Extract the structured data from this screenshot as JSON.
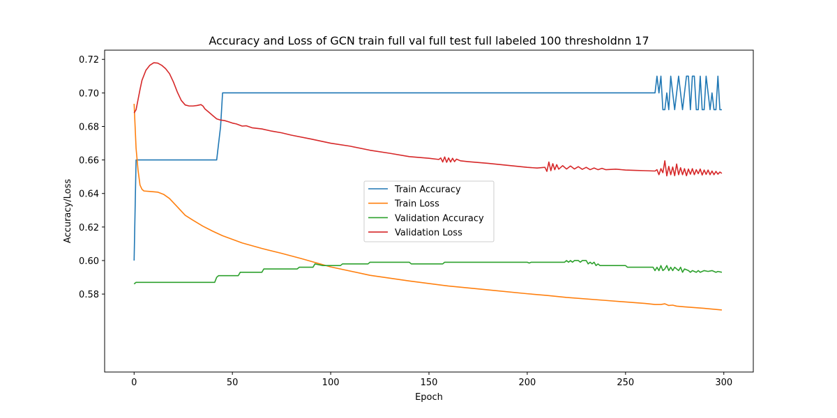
{
  "chart_data": {
    "type": "line",
    "title": "Accuracy and Loss of GCN train full val full test full labeled 100 thresholdnn 17",
    "xlabel": "Epoch",
    "ylabel": "Accuracy/Loss",
    "xlim": [
      -15,
      315
    ],
    "ylim": [
      0.5335,
      0.7255
    ],
    "xticks": [
      0,
      50,
      100,
      150,
      200,
      250,
      300
    ],
    "yticks": [
      0.58,
      0.6,
      0.62,
      0.64,
      0.66,
      0.68,
      0.7,
      0.72
    ],
    "ytick_labels": [
      "0.58",
      "0.60",
      "0.62",
      "0.64",
      "0.66",
      "0.68",
      "0.70",
      "0.72"
    ],
    "grid": false,
    "legend_position": "center",
    "series": [
      {
        "name": "Train Accuracy",
        "color": "#1f77b4",
        "points": [
          [
            0,
            0.6
          ],
          [
            1,
            0.66
          ],
          [
            42,
            0.66
          ],
          [
            44,
            0.68
          ],
          [
            45,
            0.7
          ],
          [
            265,
            0.7
          ],
          [
            266,
            0.71
          ],
          [
            267,
            0.7
          ],
          [
            268,
            0.71
          ],
          [
            269,
            0.69
          ],
          [
            270,
            0.69
          ],
          [
            271,
            0.7
          ],
          [
            272,
            0.69
          ],
          [
            273,
            0.71
          ],
          [
            274,
            0.7
          ],
          [
            275,
            0.69
          ],
          [
            276,
            0.7
          ],
          [
            277,
            0.71
          ],
          [
            278,
            0.7
          ],
          [
            279,
            0.69
          ],
          [
            280,
            0.7
          ],
          [
            281,
            0.71
          ],
          [
            282,
            0.71
          ],
          [
            283,
            0.69
          ],
          [
            284,
            0.71
          ],
          [
            285,
            0.71
          ],
          [
            286,
            0.69
          ],
          [
            287,
            0.69
          ],
          [
            288,
            0.71
          ],
          [
            289,
            0.69
          ],
          [
            290,
            0.69
          ],
          [
            291,
            0.71
          ],
          [
            292,
            0.7
          ],
          [
            293,
            0.69
          ],
          [
            294,
            0.7
          ],
          [
            295,
            0.69
          ],
          [
            296,
            0.69
          ],
          [
            297,
            0.71
          ],
          [
            298,
            0.69
          ],
          [
            299,
            0.69
          ]
        ]
      },
      {
        "name": "Train Loss",
        "color": "#ff7f0e",
        "points": [
          [
            0,
            0.6935
          ],
          [
            1,
            0.667
          ],
          [
            2,
            0.654
          ],
          [
            3,
            0.645
          ],
          [
            4,
            0.6425
          ],
          [
            5,
            0.6415
          ],
          [
            8,
            0.6412
          ],
          [
            12,
            0.6408
          ],
          [
            15,
            0.6395
          ],
          [
            18,
            0.637
          ],
          [
            22,
            0.632
          ],
          [
            26,
            0.627
          ],
          [
            30,
            0.624
          ],
          [
            35,
            0.6205
          ],
          [
            40,
            0.6175
          ],
          [
            45,
            0.6148
          ],
          [
            55,
            0.6105
          ],
          [
            65,
            0.6072
          ],
          [
            75,
            0.6043
          ],
          [
            85,
            0.6012
          ],
          [
            100,
            0.5962
          ],
          [
            120,
            0.5912
          ],
          [
            140,
            0.5878
          ],
          [
            160,
            0.5848
          ],
          [
            180,
            0.5825
          ],
          [
            200,
            0.5802
          ],
          [
            210,
            0.5792
          ],
          [
            220,
            0.578
          ],
          [
            240,
            0.5762
          ],
          [
            260,
            0.5744
          ],
          [
            265,
            0.5738
          ],
          [
            268,
            0.5738
          ],
          [
            270,
            0.5742
          ],
          [
            272,
            0.5732
          ],
          [
            274,
            0.5734
          ],
          [
            276,
            0.5728
          ],
          [
            280,
            0.5724
          ],
          [
            290,
            0.5715
          ],
          [
            299,
            0.5705
          ]
        ]
      },
      {
        "name": "Validation Accuracy",
        "color": "#2ca02c",
        "points": [
          [
            0,
            0.586
          ],
          [
            1,
            0.587
          ],
          [
            41,
            0.587
          ],
          [
            42,
            0.59
          ],
          [
            43,
            0.591
          ],
          [
            53,
            0.591
          ],
          [
            54,
            0.593
          ],
          [
            65,
            0.593
          ],
          [
            66,
            0.595
          ],
          [
            83,
            0.595
          ],
          [
            84,
            0.596
          ],
          [
            91,
            0.596
          ],
          [
            92,
            0.598
          ],
          [
            96,
            0.597
          ],
          [
            105,
            0.597
          ],
          [
            106,
            0.598
          ],
          [
            119,
            0.598
          ],
          [
            120,
            0.599
          ],
          [
            140,
            0.599
          ],
          [
            141,
            0.598
          ],
          [
            157,
            0.598
          ],
          [
            158,
            0.599
          ],
          [
            200,
            0.599
          ],
          [
            201,
            0.5985
          ],
          [
            202,
            0.599
          ],
          [
            219,
            0.599
          ],
          [
            220,
            0.6
          ],
          [
            221,
            0.599
          ],
          [
            222,
            0.6
          ],
          [
            223,
            0.599
          ],
          [
            224,
            0.6
          ],
          [
            226,
            0.6
          ],
          [
            227,
            0.599
          ],
          [
            228,
            0.6
          ],
          [
            230,
            0.6
          ],
          [
            231,
            0.598
          ],
          [
            232,
            0.599
          ],
          [
            233,
            0.598
          ],
          [
            234,
            0.599
          ],
          [
            235,
            0.597
          ],
          [
            236,
            0.598
          ],
          [
            237,
            0.597
          ],
          [
            250,
            0.597
          ],
          [
            251,
            0.596
          ],
          [
            264,
            0.596
          ],
          [
            265,
            0.594
          ],
          [
            266,
            0.596
          ],
          [
            267,
            0.594
          ],
          [
            268,
            0.597
          ],
          [
            269,
            0.594
          ],
          [
            270,
            0.595
          ],
          [
            271,
            0.597
          ],
          [
            272,
            0.594
          ],
          [
            273,
            0.596
          ],
          [
            274,
            0.594
          ],
          [
            275,
            0.596
          ],
          [
            276,
            0.595
          ],
          [
            277,
            0.594
          ],
          [
            278,
            0.596
          ],
          [
            279,
            0.593
          ],
          [
            280,
            0.595
          ],
          [
            282,
            0.594
          ],
          [
            283,
            0.593
          ],
          [
            284,
            0.594
          ],
          [
            286,
            0.593
          ],
          [
            287,
            0.594
          ],
          [
            288,
            0.593
          ],
          [
            289,
            0.5935
          ],
          [
            290,
            0.594
          ],
          [
            292,
            0.5935
          ],
          [
            294,
            0.594
          ],
          [
            296,
            0.593
          ],
          [
            297,
            0.5935
          ],
          [
            299,
            0.593
          ]
        ]
      },
      {
        "name": "Validation Loss",
        "color": "#d62728",
        "points": [
          [
            0,
            0.688
          ],
          [
            1,
            0.69
          ],
          [
            2,
            0.696
          ],
          [
            3,
            0.702
          ],
          [
            4,
            0.7075
          ],
          [
            6,
            0.7135
          ],
          [
            8,
            0.7165
          ],
          [
            10,
            0.718
          ],
          [
            12,
            0.7178
          ],
          [
            14,
            0.7165
          ],
          [
            16,
            0.7145
          ],
          [
            18,
            0.7115
          ],
          [
            20,
            0.7065
          ],
          [
            22,
            0.7005
          ],
          [
            24,
            0.6955
          ],
          [
            26,
            0.6928
          ],
          [
            28,
            0.6922
          ],
          [
            30,
            0.6922
          ],
          [
            32,
            0.6925
          ],
          [
            34,
            0.693
          ],
          [
            35,
            0.6922
          ],
          [
            36,
            0.6905
          ],
          [
            38,
            0.6885
          ],
          [
            40,
            0.6865
          ],
          [
            42,
            0.6845
          ],
          [
            44,
            0.6838
          ],
          [
            46,
            0.6835
          ],
          [
            48,
            0.6828
          ],
          [
            50,
            0.682
          ],
          [
            52,
            0.6815
          ],
          [
            55,
            0.6802
          ],
          [
            57,
            0.6804
          ],
          [
            60,
            0.6792
          ],
          [
            65,
            0.6785
          ],
          [
            70,
            0.6772
          ],
          [
            75,
            0.6762
          ],
          [
            80,
            0.6748
          ],
          [
            90,
            0.6725
          ],
          [
            100,
            0.67
          ],
          [
            110,
            0.6682
          ],
          [
            120,
            0.6658
          ],
          [
            130,
            0.664
          ],
          [
            140,
            0.662
          ],
          [
            150,
            0.661
          ],
          [
            155,
            0.6603
          ],
          [
            156,
            0.6612
          ],
          [
            157,
            0.6588
          ],
          [
            158,
            0.6618
          ],
          [
            159,
            0.6586
          ],
          [
            160,
            0.6612
          ],
          [
            161,
            0.6588
          ],
          [
            162,
            0.661
          ],
          [
            163,
            0.659
          ],
          [
            164,
            0.6605
          ],
          [
            166,
            0.6595
          ],
          [
            170,
            0.659
          ],
          [
            180,
            0.658
          ],
          [
            190,
            0.6568
          ],
          [
            200,
            0.6556
          ],
          [
            205,
            0.6552
          ],
          [
            209,
            0.6556
          ],
          [
            210,
            0.6532
          ],
          [
            211,
            0.6588
          ],
          [
            212,
            0.6536
          ],
          [
            213,
            0.6578
          ],
          [
            214,
            0.6542
          ],
          [
            215,
            0.6572
          ],
          [
            216,
            0.6545
          ],
          [
            218,
            0.6566
          ],
          [
            220,
            0.6546
          ],
          [
            222,
            0.6564
          ],
          [
            224,
            0.6546
          ],
          [
            226,
            0.656
          ],
          [
            228,
            0.6544
          ],
          [
            230,
            0.6556
          ],
          [
            232,
            0.6542
          ],
          [
            234,
            0.6552
          ],
          [
            236,
            0.6542
          ],
          [
            238,
            0.655
          ],
          [
            240,
            0.6542
          ],
          [
            245,
            0.6545
          ],
          [
            250,
            0.654
          ],
          [
            255,
            0.6538
          ],
          [
            260,
            0.6536
          ],
          [
            265,
            0.6534
          ],
          [
            266,
            0.6542
          ],
          [
            267,
            0.6512
          ],
          [
            268,
            0.6548
          ],
          [
            269,
            0.6524
          ],
          [
            270,
            0.6595
          ],
          [
            271,
            0.6505
          ],
          [
            272,
            0.6562
          ],
          [
            273,
            0.6512
          ],
          [
            274,
            0.6558
          ],
          [
            275,
            0.6506
          ],
          [
            276,
            0.6576
          ],
          [
            277,
            0.6512
          ],
          [
            278,
            0.6554
          ],
          [
            279,
            0.6512
          ],
          [
            280,
            0.6548
          ],
          [
            281,
            0.6506
          ],
          [
            282,
            0.6546
          ],
          [
            283,
            0.6515
          ],
          [
            284,
            0.6548
          ],
          [
            285,
            0.6512
          ],
          [
            286,
            0.6542
          ],
          [
            287,
            0.6518
          ],
          [
            288,
            0.6546
          ],
          [
            289,
            0.651
          ],
          [
            290,
            0.654
          ],
          [
            291,
            0.6514
          ],
          [
            292,
            0.654
          ],
          [
            293,
            0.6512
          ],
          [
            294,
            0.6534
          ],
          [
            295,
            0.6512
          ],
          [
            296,
            0.6532
          ],
          [
            297,
            0.6515
          ],
          [
            298,
            0.6528
          ],
          [
            299,
            0.652
          ]
        ]
      }
    ]
  }
}
